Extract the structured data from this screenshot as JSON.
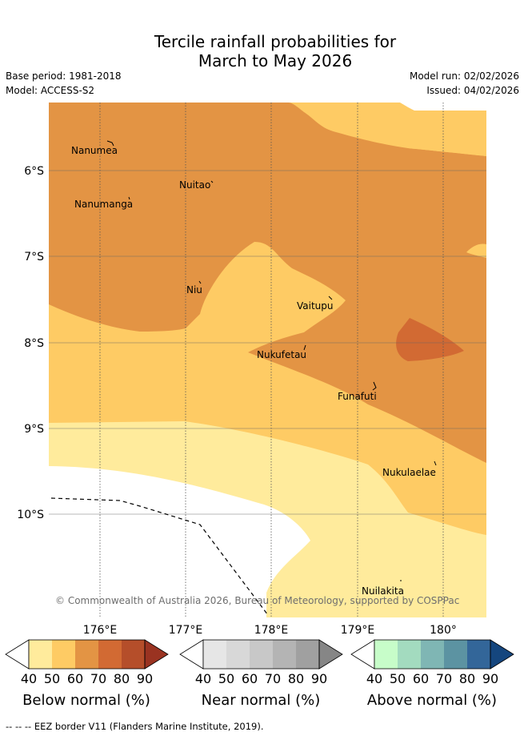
{
  "title_line1": "Tercile rainfall probabilities for",
  "title_line2": "March to May 2026",
  "base_period": "Base period: 1981-2018",
  "model": "Model: ACCESS-S2",
  "model_run": "Model run: 02/02/2026",
  "issued": "Issued: 04/02/2026",
  "lat_labels": [
    "6°S",
    "7°S",
    "8°S",
    "9°S",
    "10°S"
  ],
  "lon_labels": [
    "176°E",
    "177°E",
    "178°E",
    "179°E",
    "180°"
  ],
  "places": [
    "Nanumea",
    "Nuitao",
    "Nanumanga",
    "Niu",
    "Vaitupu",
    "Nukufetau",
    "Funafuti",
    "Nukulaelae",
    "Nuilakita"
  ],
  "copyright": "© Commonwealth of Australia 2026, Bureau of Meteorology, supported by COSPPac",
  "legend": {
    "ticks": [
      "40",
      "50",
      "60",
      "70",
      "80",
      "90"
    ],
    "below": {
      "label": "Below normal (%)",
      "colors": [
        "#ffeb9c",
        "#fecb64",
        "#e39444",
        "#d26a33",
        "#b54e2a",
        "#9a3321"
      ]
    },
    "near": {
      "label": "Near normal (%)",
      "colors": [
        "#e6e6e6",
        "#d8d8d8",
        "#c8c8c8",
        "#b4b4b4",
        "#a0a0a0",
        "#868686"
      ]
    },
    "above": {
      "label": "Above normal (%)",
      "colors": [
        "#c7fdc9",
        "#a3dbbf",
        "#7fb6b4",
        "#5c93a2",
        "#336699",
        "#15467e"
      ]
    }
  },
  "eez_note": "--  --  -- EEZ border V11 (Flanders Marine Institute, 2019)."
}
